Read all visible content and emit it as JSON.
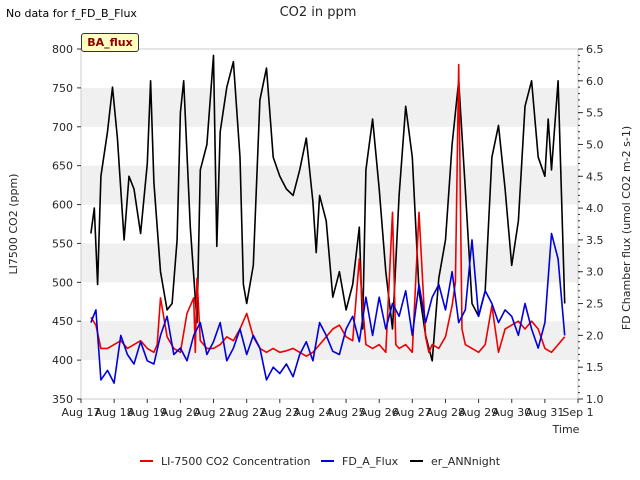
{
  "header": {
    "no_data_note": "No data for f_FD_B_Flux",
    "badge": "BA_flux"
  },
  "colors": {
    "band": "#f0f0f0",
    "red": "#ee0000",
    "blue": "#0000dd",
    "black": "#000000"
  },
  "chart_data": {
    "type": "line",
    "title": "CO2 in ppm",
    "xlabel": "Time",
    "ylabel_left": "LI7500 CO2 (ppm)",
    "ylabel_right": "FD Chamber flux (umol CO2 m-2 s-1)",
    "xlim": [
      17,
      32
    ],
    "x_ticks": [
      17,
      18,
      19,
      20,
      21,
      22,
      23,
      24,
      25,
      26,
      27,
      28,
      29,
      30,
      31,
      32
    ],
    "x_tick_labels": [
      "Aug 17",
      "Aug 18",
      "Aug 19",
      "Aug 20",
      "Aug 21",
      "Aug 22",
      "Aug 23",
      "Aug 24",
      "Aug 25",
      "Aug 26",
      "Aug 27",
      "Aug 28",
      "Aug 29",
      "Aug 30",
      "Aug 31",
      "Sep 1"
    ],
    "ylim_left": [
      350,
      800
    ],
    "y_ticks_left": [
      350,
      400,
      450,
      500,
      550,
      600,
      650,
      700,
      750,
      800
    ],
    "ylim_right": [
      1.0,
      6.5
    ],
    "y_ticks_right": [
      1.0,
      1.5,
      2.0,
      2.5,
      3.0,
      3.5,
      4.0,
      4.5,
      5.0,
      5.5,
      6.0,
      6.5
    ],
    "y_tick_labels_right": [
      "1.0",
      "1.5",
      "2.0",
      "2.5",
      "3.0",
      "3.5",
      "4.0",
      "4.5",
      "5.0",
      "5.5",
      "6.0",
      "6.5"
    ],
    "legend_position": "bottom",
    "series": [
      {
        "name": "LI-7500 CO2 Concentration",
        "axis": "left",
        "color": "#ee0000",
        "x": [
          17.3,
          17.45,
          17.6,
          17.8,
          18.0,
          18.2,
          18.4,
          18.6,
          18.8,
          19.0,
          19.2,
          19.3,
          19.4,
          19.6,
          19.8,
          20.0,
          20.2,
          20.4,
          20.45,
          20.5,
          20.6,
          20.8,
          21.0,
          21.2,
          21.4,
          21.6,
          21.8,
          22.0,
          22.2,
          22.4,
          22.6,
          22.8,
          23.0,
          23.2,
          23.4,
          23.6,
          23.8,
          24.0,
          24.2,
          24.4,
          24.6,
          24.8,
          25.0,
          25.2,
          25.4,
          25.5,
          25.6,
          25.8,
          26.0,
          26.2,
          26.4,
          26.5,
          26.6,
          26.8,
          27.0,
          27.2,
          27.4,
          27.5,
          27.6,
          27.8,
          28.0,
          28.2,
          28.3,
          28.4,
          28.5,
          28.6,
          28.8,
          29.0,
          29.2,
          29.4,
          29.6,
          29.8,
          30.0,
          30.2,
          30.4,
          30.6,
          30.8,
          31.0,
          31.2,
          31.4,
          31.6
        ],
        "values": [
          455,
          445,
          415,
          415,
          420,
          425,
          415,
          420,
          425,
          415,
          410,
          420,
          480,
          430,
          415,
          410,
          460,
          480,
          410,
          505,
          425,
          415,
          415,
          420,
          430,
          425,
          440,
          460,
          430,
          415,
          410,
          415,
          410,
          412,
          415,
          410,
          405,
          410,
          420,
          430,
          440,
          445,
          430,
          425,
          530,
          470,
          420,
          415,
          420,
          410,
          590,
          420,
          415,
          420,
          410,
          590,
          430,
          410,
          420,
          415,
          430,
          470,
          500,
          780,
          440,
          420,
          415,
          410,
          420,
          470,
          410,
          440,
          445,
          450,
          440,
          450,
          440,
          415,
          410,
          420,
          430
        ]
      },
      {
        "name": "FD_A_Flux",
        "axis": "right",
        "color": "#0000dd",
        "x": [
          17.3,
          17.45,
          17.6,
          17.8,
          18.0,
          18.2,
          18.4,
          18.6,
          18.8,
          19.0,
          19.2,
          19.4,
          19.6,
          19.8,
          20.0,
          20.2,
          20.4,
          20.6,
          20.8,
          21.0,
          21.2,
          21.4,
          21.6,
          21.8,
          22.0,
          22.2,
          22.4,
          22.6,
          22.8,
          23.0,
          23.2,
          23.4,
          23.6,
          23.8,
          24.0,
          24.2,
          24.4,
          24.6,
          24.8,
          25.0,
          25.2,
          25.4,
          25.6,
          25.8,
          26.0,
          26.2,
          26.4,
          26.6,
          26.8,
          27.0,
          27.2,
          27.4,
          27.6,
          27.8,
          28.0,
          28.2,
          28.4,
          28.6,
          28.8,
          29.0,
          29.2,
          29.4,
          29.6,
          29.8,
          30.0,
          30.2,
          30.4,
          30.6,
          30.8,
          31.0,
          31.2,
          31.4,
          31.6
        ],
        "values": [
          2.2,
          2.4,
          1.3,
          1.45,
          1.25,
          2.0,
          1.7,
          1.55,
          1.9,
          1.6,
          1.55,
          2.0,
          2.3,
          1.7,
          1.8,
          1.6,
          2.0,
          2.2,
          1.7,
          1.9,
          2.2,
          1.6,
          1.8,
          2.1,
          1.7,
          2.0,
          1.8,
          1.3,
          1.5,
          1.4,
          1.55,
          1.35,
          1.7,
          1.9,
          1.6,
          2.2,
          2.0,
          1.75,
          1.7,
          2.1,
          2.3,
          1.9,
          2.6,
          2.0,
          2.6,
          2.1,
          2.5,
          2.3,
          2.7,
          2.0,
          2.8,
          2.2,
          2.6,
          2.8,
          2.4,
          3.0,
          2.2,
          2.4,
          3.5,
          2.3,
          2.7,
          2.5,
          2.2,
          2.4,
          2.3,
          2.0,
          2.5,
          2.1,
          1.8,
          2.2,
          3.6,
          3.2,
          2.0
        ]
      },
      {
        "name": "er_ANNnight",
        "axis": "right",
        "color": "#000000",
        "x": [
          17.3,
          17.4,
          17.5,
          17.6,
          17.8,
          17.95,
          18.1,
          18.3,
          18.45,
          18.6,
          18.8,
          19.0,
          19.1,
          19.2,
          19.4,
          19.6,
          19.75,
          19.9,
          20.0,
          20.1,
          20.3,
          20.5,
          20.6,
          20.8,
          21.0,
          21.1,
          21.2,
          21.4,
          21.6,
          21.8,
          21.9,
          22.0,
          22.2,
          22.4,
          22.6,
          22.8,
          23.0,
          23.2,
          23.4,
          23.6,
          23.8,
          24.0,
          24.1,
          24.2,
          24.4,
          24.6,
          24.8,
          25.0,
          25.2,
          25.4,
          25.5,
          25.6,
          25.8,
          26.0,
          26.2,
          26.4,
          26.6,
          26.8,
          27.0,
          27.2,
          27.4,
          27.6,
          27.8,
          28.0,
          28.2,
          28.4,
          28.6,
          28.8,
          29.0,
          29.2,
          29.4,
          29.6,
          29.8,
          30.0,
          30.2,
          30.4,
          30.6,
          30.8,
          31.0,
          31.1,
          31.2,
          31.4,
          31.6
        ],
        "values": [
          3.6,
          4.0,
          2.8,
          4.5,
          5.2,
          5.9,
          5.1,
          3.5,
          4.5,
          4.3,
          3.6,
          4.7,
          6.0,
          4.4,
          3.0,
          2.4,
          2.5,
          3.5,
          5.5,
          6.0,
          3.7,
          2.2,
          4.6,
          5.0,
          6.4,
          3.4,
          5.2,
          5.9,
          6.3,
          4.8,
          2.8,
          2.5,
          3.1,
          5.7,
          6.2,
          4.8,
          4.5,
          4.3,
          4.2,
          4.6,
          5.1,
          4.1,
          3.3,
          4.2,
          3.8,
          2.6,
          3.0,
          2.4,
          2.8,
          3.7,
          2.1,
          4.6,
          5.4,
          4.3,
          3.0,
          2.1,
          4.2,
          5.6,
          4.8,
          2.7,
          2.0,
          1.6,
          2.9,
          3.5,
          5.0,
          6.0,
          4.3,
          2.5,
          2.3,
          2.7,
          4.8,
          5.3,
          4.3,
          3.1,
          3.8,
          5.6,
          6.0,
          4.8,
          4.5,
          5.4,
          4.6,
          6.0,
          2.5
        ]
      }
    ]
  }
}
